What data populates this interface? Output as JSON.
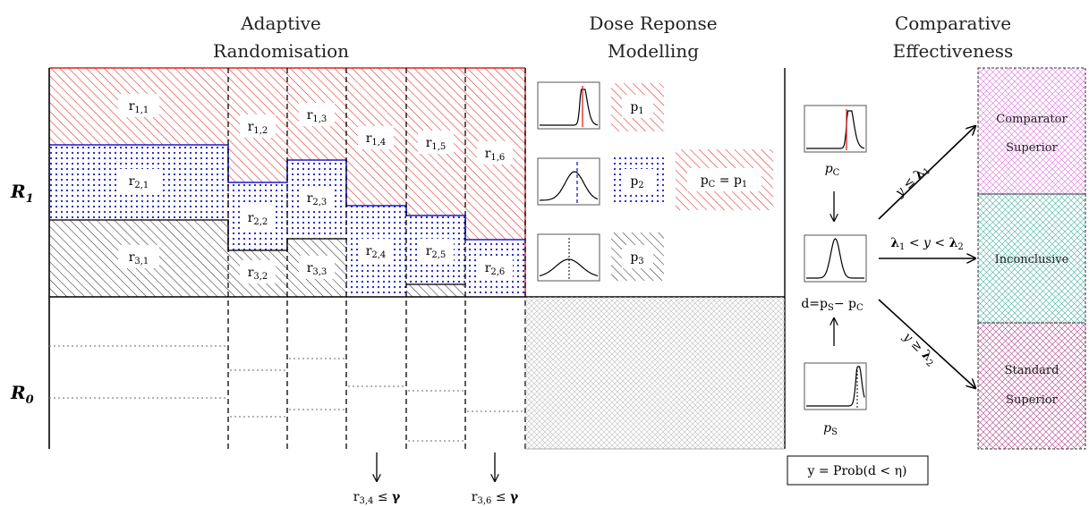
{
  "sections": {
    "adaptive": [
      "Adaptive",
      "Randomisation"
    ],
    "dose": [
      "Dose Reponse",
      "Modelling"
    ],
    "comparative": [
      "Comparative",
      "Effectiveness"
    ]
  },
  "rows": {
    "r1": {
      "main": "R",
      "sub": "1"
    },
    "r0": {
      "main": "R",
      "sub": "0"
    }
  },
  "cells": [
    {
      "id": "r11",
      "main": "r",
      "sub": "1,1"
    },
    {
      "id": "r21",
      "main": "r",
      "sub": "2,1"
    },
    {
      "id": "r31",
      "main": "r",
      "sub": "3,1"
    },
    {
      "id": "r12",
      "main": "r",
      "sub": "1,2"
    },
    {
      "id": "r22",
      "main": "r",
      "sub": "2,2"
    },
    {
      "id": "r32",
      "main": "r",
      "sub": "3,2"
    },
    {
      "id": "r13",
      "main": "r",
      "sub": "1,3"
    },
    {
      "id": "r23",
      "main": "r",
      "sub": "2,3"
    },
    {
      "id": "r33",
      "main": "r",
      "sub": "3,3"
    },
    {
      "id": "r14",
      "main": "r",
      "sub": "1,4"
    },
    {
      "id": "r24",
      "main": "r",
      "sub": "2,4"
    },
    {
      "id": "r15",
      "main": "r",
      "sub": "1,5"
    },
    {
      "id": "r25",
      "main": "r",
      "sub": "2,5"
    },
    {
      "id": "r16",
      "main": "r",
      "sub": "1,6"
    },
    {
      "id": "r26",
      "main": "r",
      "sub": "2,6"
    }
  ],
  "dropouts": [
    {
      "main": "r",
      "sub": "3,4",
      "rel": "≤",
      "sym": "γ"
    },
    {
      "main": "r",
      "sub": "3,6",
      "rel": "≤",
      "sym": "γ"
    }
  ],
  "dose": {
    "p1": {
      "main": "p",
      "sub": "1"
    },
    "p2": {
      "main": "p",
      "sub": "2"
    },
    "p3": {
      "main": "p",
      "sub": "3"
    },
    "pc_eq": {
      "main": "p",
      "sub": "C",
      "eq": " = p",
      "sub2": "1"
    }
  },
  "comp": {
    "pc": {
      "main": "p",
      "sub": "C"
    },
    "ps": {
      "main": "p",
      "sub": "S"
    },
    "d": {
      "a": "d",
      "b": "=p",
      "c": "S",
      "d": "− p",
      "e": "C"
    },
    "formula": "y = Prob(d < η)",
    "arrow_top": {
      "a": "y ≤ ",
      "b": "λ",
      "c": "1"
    },
    "arrow_mid": {
      "a": "λ",
      "b": "1",
      "c": " < y < ",
      "d": "λ",
      "e": "2"
    },
    "arrow_bot": {
      "a": "y ≥ ",
      "b": "λ",
      "c": "2"
    }
  },
  "outcomes": {
    "comparator": [
      "Comparator",
      "Superior"
    ],
    "inconclusive": "Inconclusive",
    "standard": [
      "Standard",
      "Superior"
    ]
  },
  "colors": {
    "red": "#e02020",
    "blue": "#1a1ad0",
    "black": "#222222",
    "pink": "#e070e0",
    "teal": "#40b0a0",
    "purple": "#b0408a",
    "gray": "#b4b4b4"
  }
}
